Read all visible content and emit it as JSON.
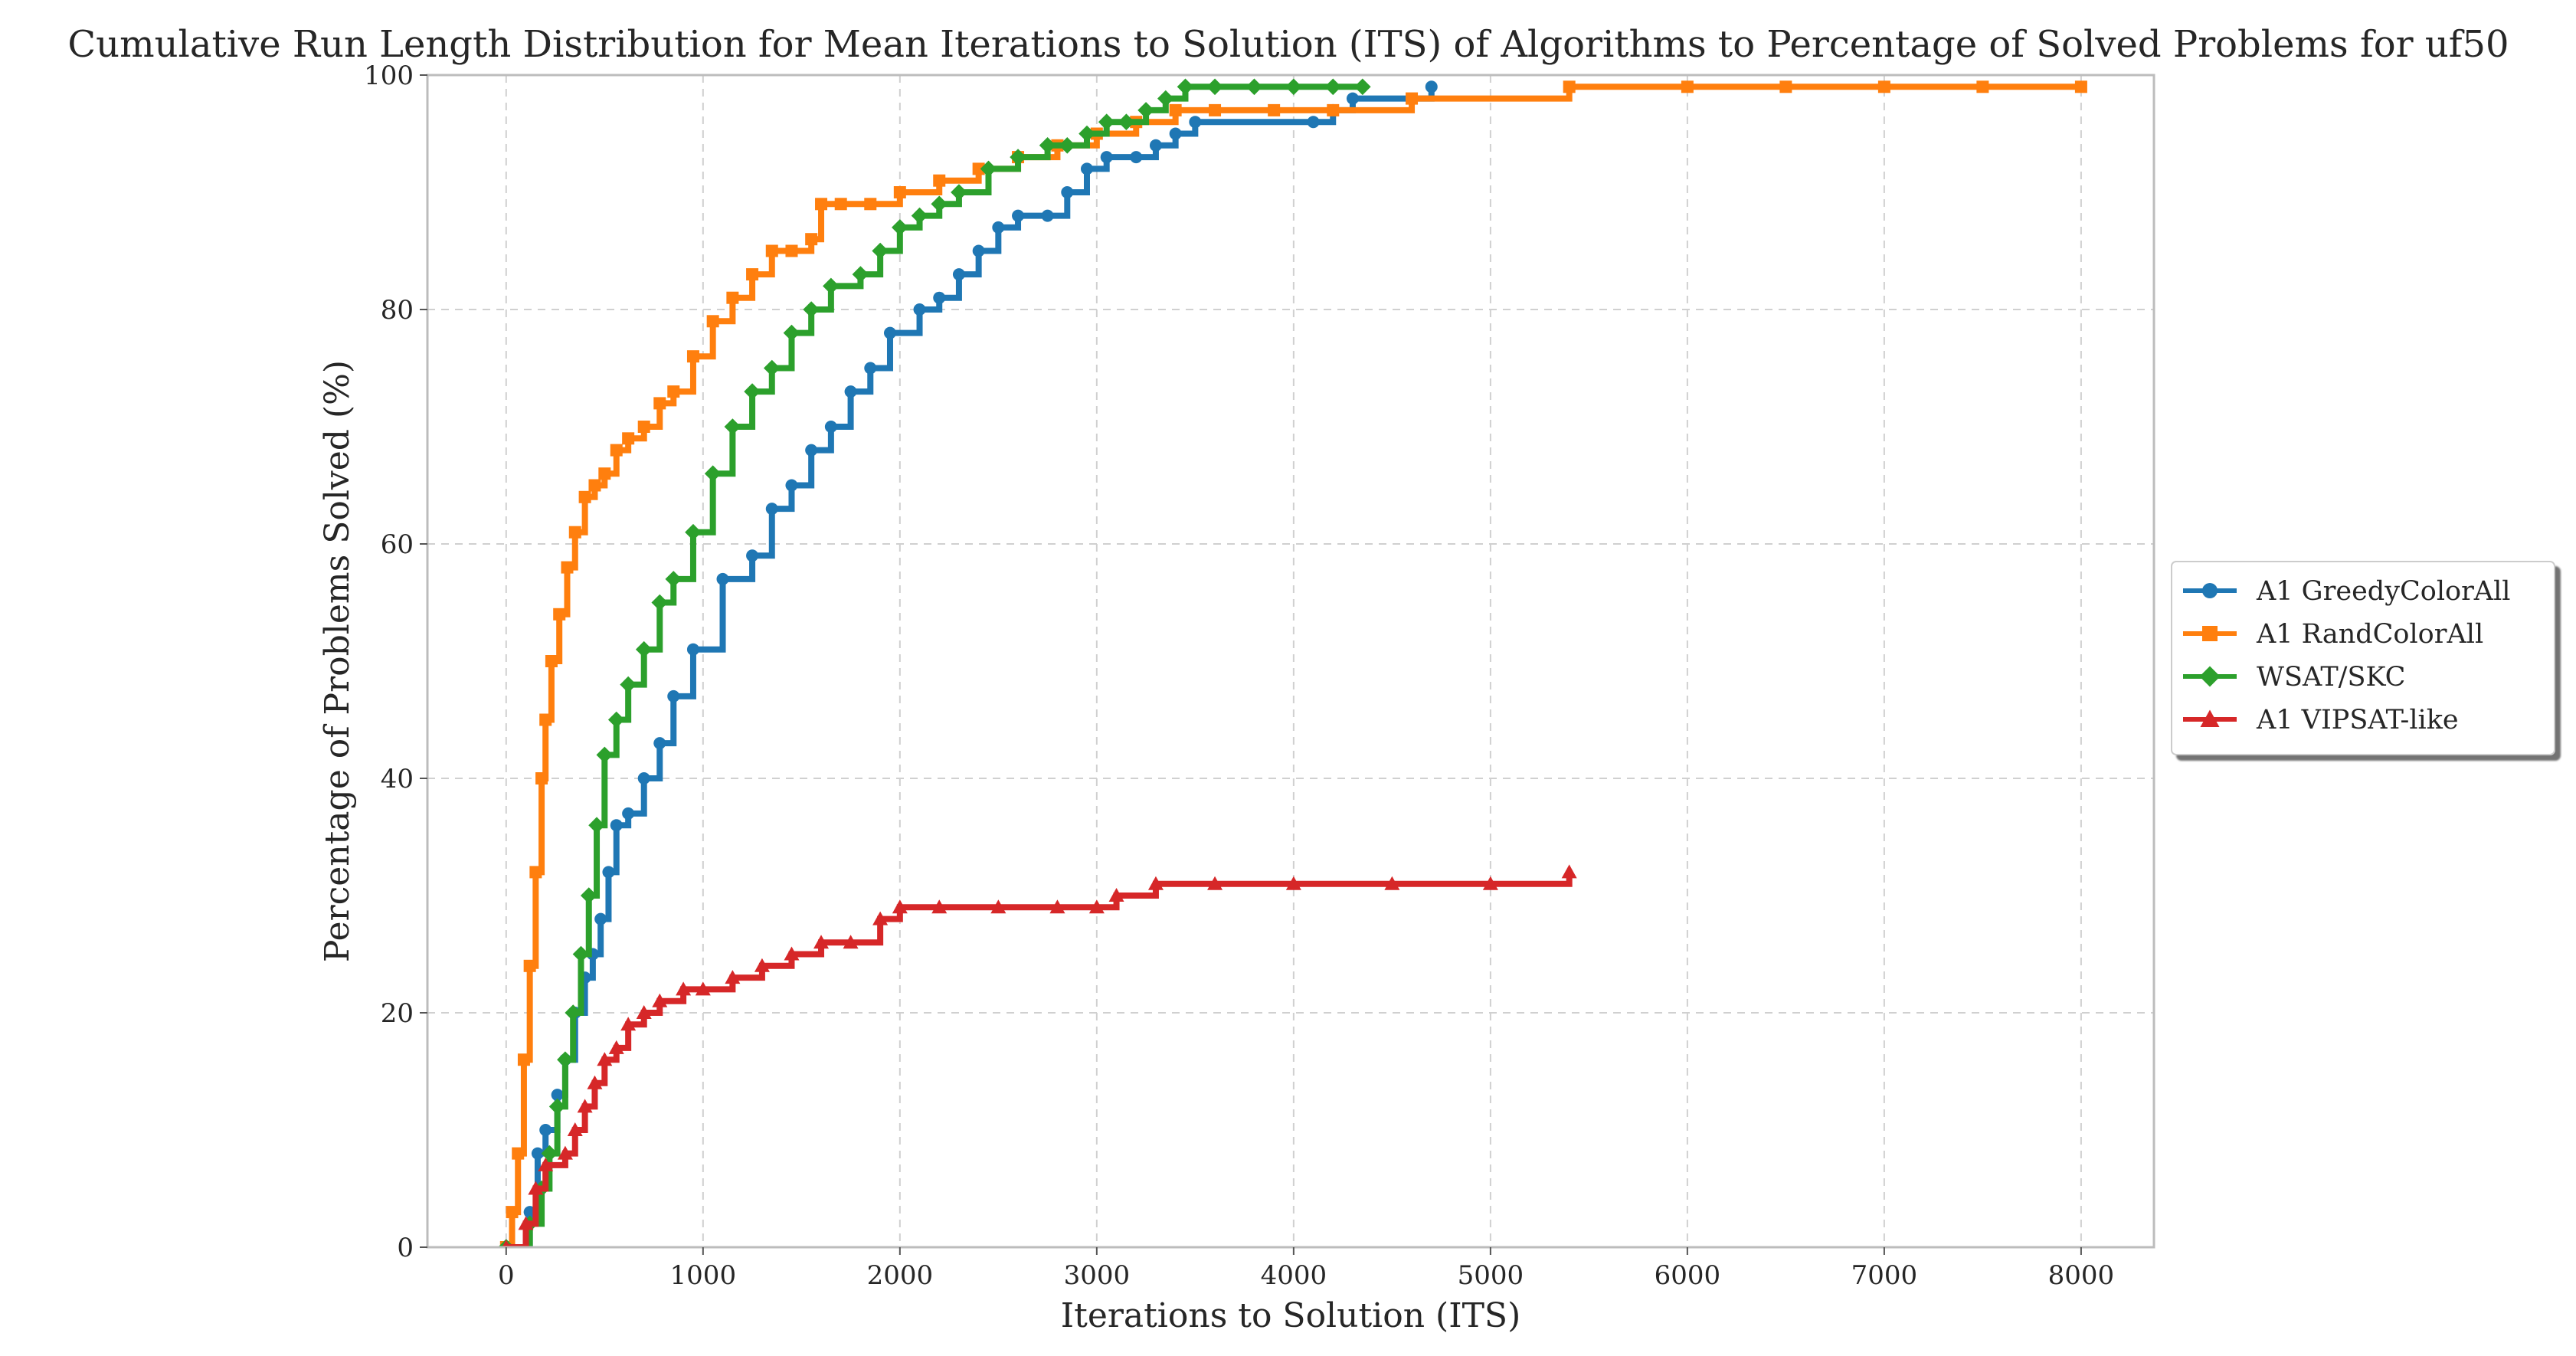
{
  "chart_data": {
    "type": "line",
    "title": "Cumulative Run Length Distribution for Mean Iterations to Solution (ITS) of Algorithms to Percentage of Solved Problems for uf50",
    "xlabel": "Iterations to Solution (ITS)",
    "ylabel": "Percentage of Problems Solved (%)",
    "xlim": [
      -400,
      8370
    ],
    "ylim": [
      0,
      100
    ],
    "xticks": [
      0,
      1000,
      2000,
      3000,
      4000,
      5000,
      6000,
      7000,
      8000
    ],
    "yticks": [
      0,
      20,
      40,
      60,
      80,
      100
    ],
    "grid": true,
    "legend_position": "right-outside",
    "series": [
      {
        "name": "A1 GreedyColorAll",
        "color": "#1f77b4",
        "marker": "circle",
        "x": [
          0,
          120,
          160,
          200,
          260,
          300,
          350,
          400,
          440,
          480,
          520,
          560,
          620,
          700,
          780,
          850,
          950,
          1100,
          1250,
          1350,
          1450,
          1550,
          1650,
          1750,
          1850,
          1950,
          2100,
          2200,
          2300,
          2400,
          2500,
          2600,
          2750,
          2850,
          2950,
          3050,
          3200,
          3300,
          3400,
          3500,
          4100,
          4200,
          4300,
          4700
        ],
        "y": [
          0,
          3,
          8,
          10,
          13,
          16,
          20,
          23,
          25,
          28,
          32,
          36,
          37,
          40,
          43,
          47,
          51,
          57,
          59,
          63,
          65,
          68,
          70,
          73,
          75,
          78,
          80,
          81,
          83,
          85,
          87,
          88,
          88,
          90,
          92,
          93,
          93,
          94,
          95,
          96,
          96,
          97,
          98,
          99
        ]
      },
      {
        "name": "A1 RandColorAll",
        "color": "#ff7f0e",
        "marker": "square",
        "x": [
          0,
          30,
          60,
          90,
          120,
          150,
          180,
          200,
          230,
          270,
          310,
          350,
          400,
          450,
          500,
          560,
          620,
          700,
          780,
          850,
          950,
          1050,
          1150,
          1250,
          1350,
          1450,
          1550,
          1600,
          1700,
          1850,
          2000,
          2200,
          2400,
          2600,
          2800,
          3000,
          3200,
          3400,
          3600,
          3900,
          4200,
          4600,
          5400,
          6000,
          6500,
          7000,
          7500,
          8000
        ],
        "y": [
          0,
          3,
          8,
          16,
          24,
          32,
          40,
          45,
          50,
          54,
          58,
          61,
          64,
          65,
          66,
          68,
          69,
          70,
          72,
          73,
          76,
          79,
          81,
          83,
          85,
          85,
          86,
          89,
          89,
          89,
          90,
          91,
          92,
          93,
          94,
          95,
          96,
          97,
          97,
          97,
          97,
          98,
          99,
          99,
          99,
          99,
          99,
          99
        ]
      },
      {
        "name": "WSAT/SKC",
        "color": "#2ca02c",
        "marker": "diamond",
        "x": [
          0,
          120,
          180,
          220,
          260,
          300,
          340,
          380,
          420,
          460,
          500,
          560,
          620,
          700,
          780,
          850,
          950,
          1050,
          1150,
          1250,
          1350,
          1450,
          1550,
          1650,
          1800,
          1900,
          2000,
          2100,
          2200,
          2300,
          2450,
          2600,
          2750,
          2850,
          2950,
          3050,
          3150,
          3250,
          3350,
          3450,
          3600,
          3800,
          4000,
          4200,
          4350
        ],
        "y": [
          0,
          2,
          5,
          8,
          12,
          16,
          20,
          25,
          30,
          36,
          42,
          45,
          48,
          51,
          55,
          57,
          61,
          66,
          70,
          73,
          75,
          78,
          80,
          82,
          83,
          85,
          87,
          88,
          89,
          90,
          92,
          93,
          94,
          94,
          95,
          96,
          96,
          97,
          98,
          99,
          99,
          99,
          99,
          99,
          99
        ]
      },
      {
        "name": "A1 VIPSAT-like",
        "color": "#d62728",
        "marker": "triangle",
        "x": [
          0,
          100,
          150,
          200,
          300,
          350,
          400,
          450,
          500,
          560,
          620,
          700,
          780,
          900,
          1000,
          1150,
          1300,
          1450,
          1600,
          1750,
          1900,
          2000,
          2200,
          2500,
          2800,
          3000,
          3100,
          3300,
          3600,
          4000,
          4500,
          5000,
          5400
        ],
        "y": [
          0,
          2,
          5,
          7,
          8,
          10,
          12,
          14,
          16,
          17,
          19,
          20,
          21,
          22,
          22,
          23,
          24,
          25,
          26,
          26,
          28,
          29,
          29,
          29,
          29,
          29,
          30,
          31,
          31,
          31,
          31,
          31,
          32
        ]
      }
    ]
  }
}
